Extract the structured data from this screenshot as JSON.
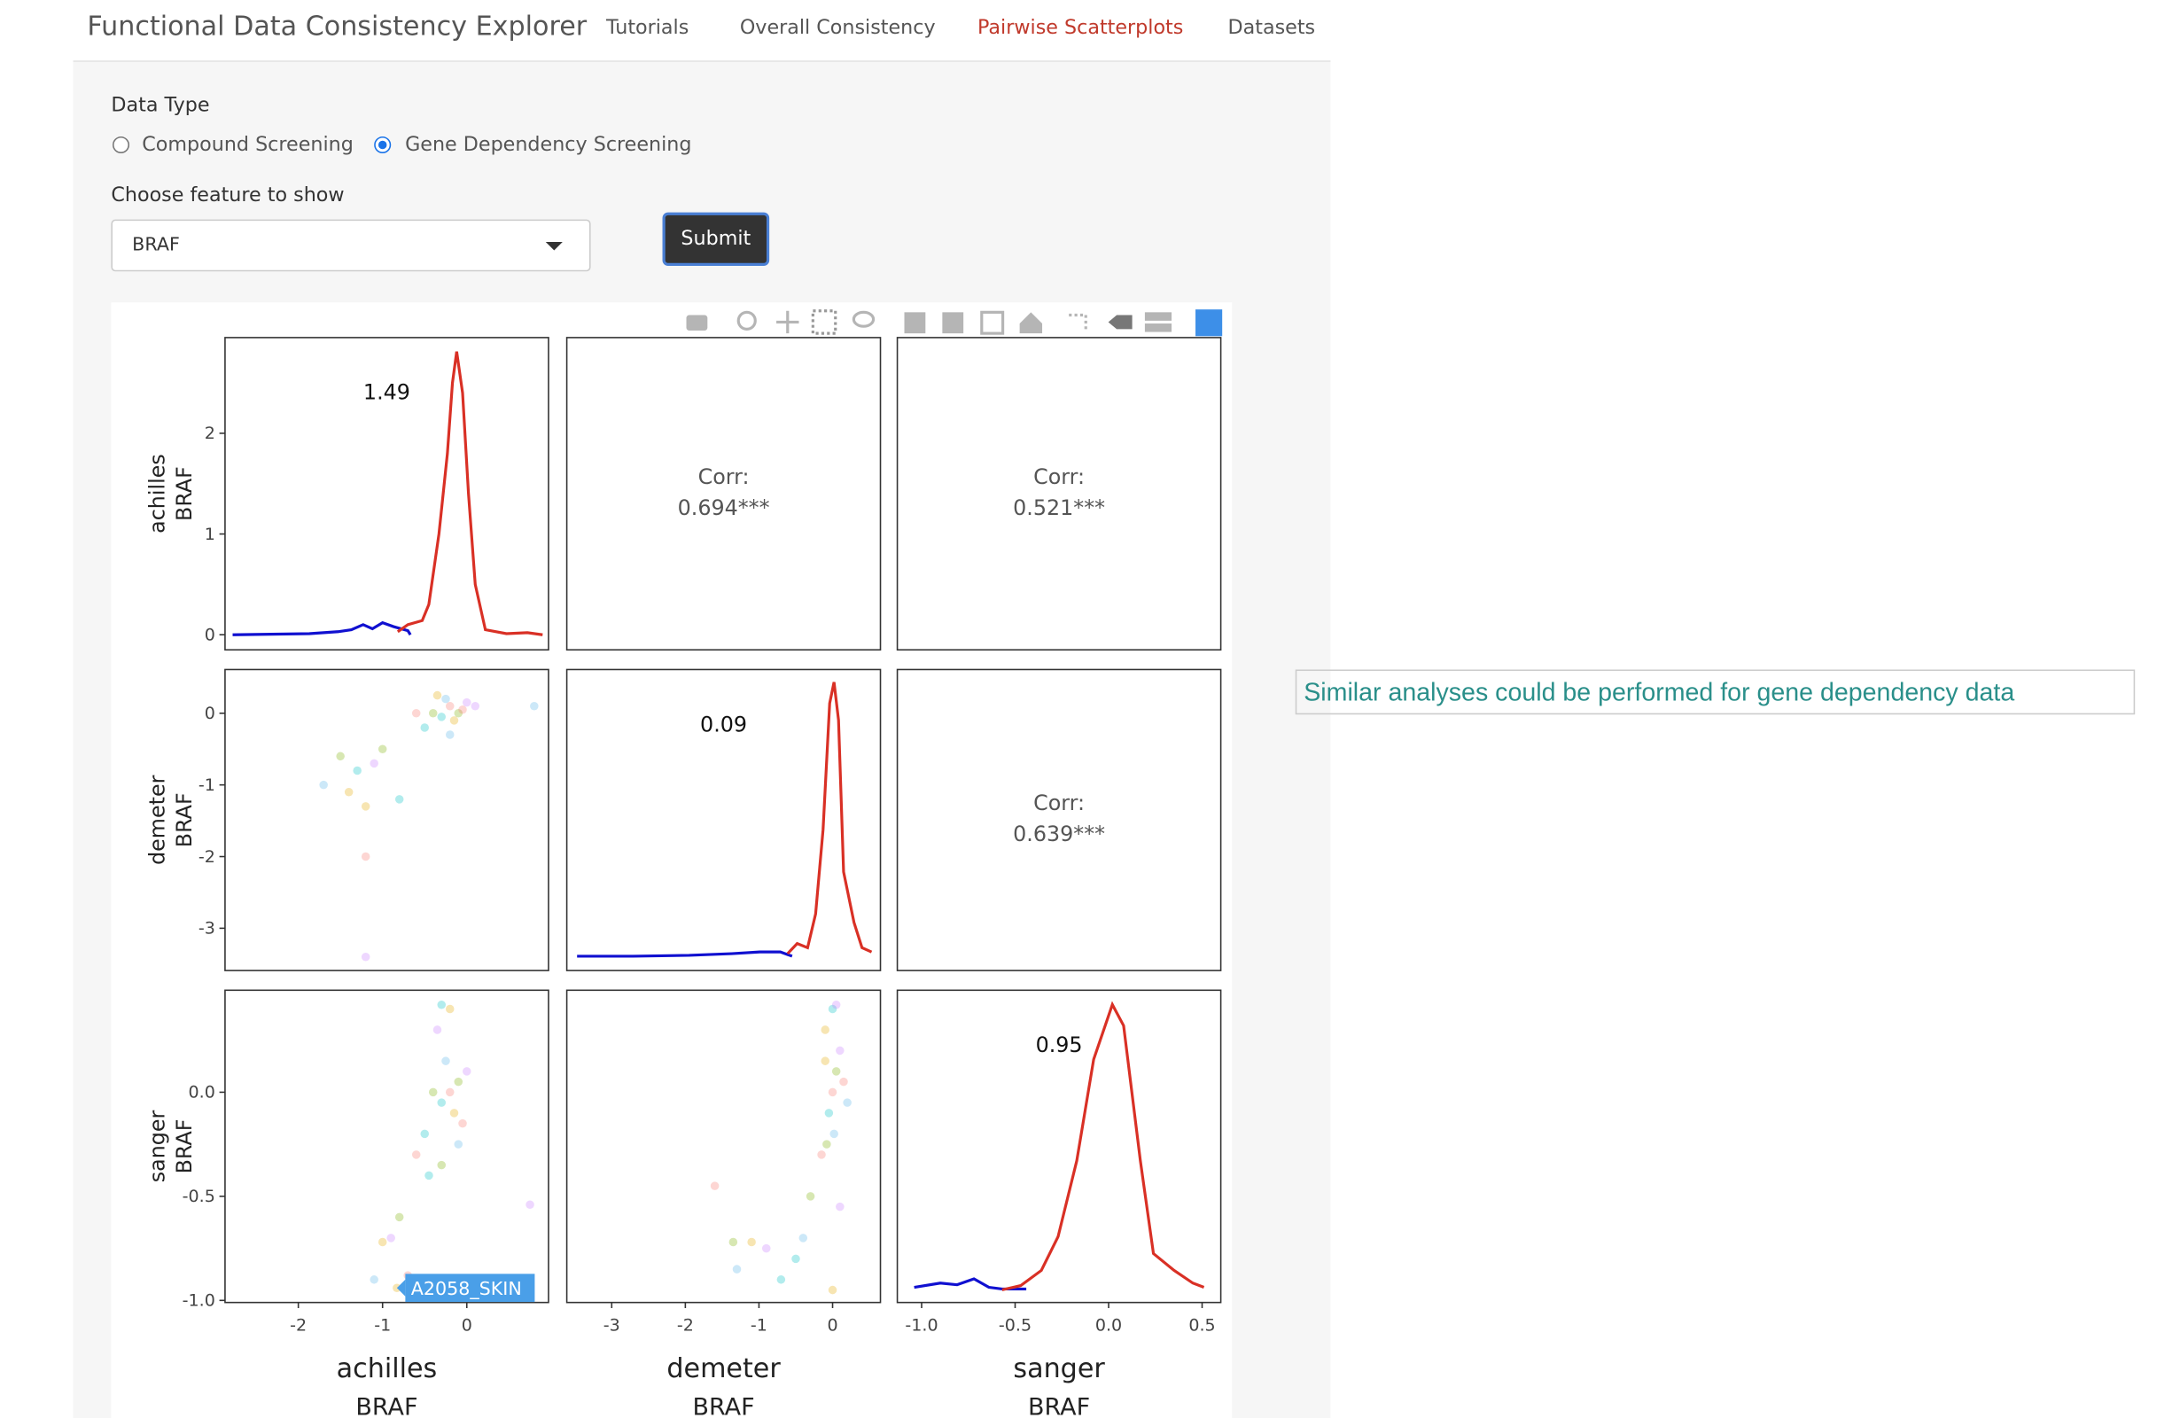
{
  "nav": {
    "brand": "Functional Data Consistency Explorer",
    "links": [
      "Tutorials",
      "Overall Consistency",
      "Pairwise Scatterplots",
      "Datasets"
    ],
    "active": 2
  },
  "form": {
    "data_type_label": "Data Type",
    "options": [
      "Compound Screening",
      "Gene Dependency Screening"
    ],
    "selected": 1,
    "feature_label": "Choose feature to show",
    "feature_value": "BRAF",
    "submit": "Submit"
  },
  "note": "Similar analyses could be performed for gene dependency data",
  "chart_data": {
    "type": "pairs",
    "point_colors": [
      "#f8766d",
      "#7cae00",
      "#00bfc4",
      "#c77cff",
      "#e5a800",
      "#56b4e9"
    ],
    "rows": [
      {
        "title": [
          "achilles",
          "BRAF"
        ],
        "ylim": [
          -0.15,
          2.95
        ],
        "yticks": [
          0,
          1,
          2
        ]
      },
      {
        "title": [
          "demeter",
          "BRAF"
        ],
        "ylim": [
          -3.59,
          0.61
        ],
        "yticks": [
          -3,
          -2,
          -1,
          0
        ]
      },
      {
        "title": [
          "sanger",
          "BRAF"
        ],
        "ylim": [
          -1.01,
          0.49
        ],
        "yticks": [
          {
            "value": -1.0,
            "label": "-1.0"
          },
          -0.5,
          {
            "value": 0.0,
            "label": "0.0"
          }
        ]
      }
    ],
    "columns": [
      {
        "title": [
          "achilles",
          "BRAF"
        ],
        "xlim": [
          -2.87,
          0.97
        ],
        "xticks": [
          -2,
          -1,
          0
        ]
      },
      {
        "title": [
          "demeter",
          "BRAF"
        ],
        "xlim": [
          -3.61,
          0.65
        ],
        "xticks": [
          -3,
          -2,
          -1,
          0
        ]
      },
      {
        "title": [
          "sanger",
          "BRAF"
        ],
        "xlim": [
          -1.13,
          0.6
        ],
        "xticks": [
          {
            "value": -1.0,
            "label": "-1.0"
          },
          -0.5,
          {
            "value": 0.0,
            "label": "0.0"
          },
          0.5
        ]
      }
    ],
    "panels": [
      [
        {
          "type": "density",
          "label": "1.49",
          "series": [
            {
              "color": "#1010d0",
              "x": [
                -2.78,
                -1.87,
                -1.53,
                -1.37,
                -1.23,
                -1.12,
                -1.0,
                -0.87,
                -0.7,
                -0.67
              ],
              "values": [
                0,
                0.01,
                0.03,
                0.05,
                0.1,
                0.06,
                0.12,
                0.08,
                0.04,
                0.0
              ]
            },
            {
              "color": "#d93025",
              "x": [
                -0.82,
                -0.7,
                -0.53,
                -0.45,
                -0.33,
                -0.23,
                -0.17,
                -0.12,
                -0.05,
                0.02,
                0.1,
                0.22,
                0.47,
                0.72,
                0.9
              ],
              "values": [
                0.03,
                0.1,
                0.14,
                0.3,
                1.0,
                1.8,
                2.5,
                2.81,
                2.4,
                1.4,
                0.5,
                0.05,
                0.01,
                0.02,
                0
              ]
            }
          ]
        },
        {
          "type": "corr",
          "lines": [
            "Corr:",
            "0.694***"
          ]
        },
        {
          "type": "corr",
          "lines": [
            "Corr:",
            "0.521***"
          ]
        }
      ],
      [
        {
          "type": "scatter",
          "x": [
            -0.2,
            -0.1,
            -0.3,
            0.0,
            -0.15,
            -0.25,
            -0.05,
            -0.4,
            -0.5,
            0.1,
            -0.35,
            -0.2,
            -0.6,
            -1.5,
            -1.3,
            -1.1,
            -1.4,
            -1.7,
            -1.2,
            -1.0,
            -0.8,
            -1.2,
            -1.2,
            0.8
          ],
          "y": [
            0.1,
            0.0,
            -0.05,
            0.15,
            -0.1,
            0.2,
            0.05,
            0.0,
            -0.2,
            0.1,
            0.25,
            -0.3,
            0.0,
            -0.6,
            -0.8,
            -0.7,
            -1.1,
            -1.0,
            -2.0,
            -0.5,
            -1.2,
            -3.4,
            -1.3,
            0.1
          ]
        },
        {
          "type": "density",
          "label": "0.09",
          "ylim": [
            -0.17,
            3.4
          ],
          "series": [
            {
              "color": "#1010d0",
              "x": [
                -3.47,
                -2.71,
                -1.95,
                -1.37,
                -0.99,
                -0.71,
                -0.55
              ],
              "values": [
                0,
                0,
                0.01,
                0.03,
                0.05,
                0.05,
                0.0
              ]
            },
            {
              "color": "#d93025",
              "x": [
                -0.61,
                -0.48,
                -0.34,
                -0.23,
                -0.13,
                -0.04,
                0.02,
                0.08,
                0.15,
                0.29,
                0.4,
                0.53
              ],
              "values": [
                0.03,
                0.15,
                0.1,
                0.5,
                1.5,
                3.0,
                3.25,
                2.8,
                1.0,
                0.4,
                0.1,
                0.05
              ]
            }
          ]
        },
        {
          "type": "corr",
          "lines": [
            "Corr:",
            "0.639***"
          ]
        }
      ],
      [
        {
          "type": "scatter",
          "x": [
            -0.2,
            -0.1,
            -0.3,
            0.0,
            -0.15,
            -0.25,
            -0.05,
            -0.4,
            -0.5,
            -0.35,
            -0.2,
            -0.1,
            -0.6,
            -0.3,
            -0.45,
            -0.9,
            -1.0,
            -1.1,
            -0.7,
            -0.8,
            -0.3,
            0.75,
            -0.83
          ],
          "y": [
            0.0,
            0.05,
            -0.05,
            0.1,
            -0.1,
            0.15,
            -0.15,
            0.0,
            -0.2,
            0.3,
            0.4,
            -0.25,
            -0.3,
            -0.35,
            -0.4,
            -0.7,
            -0.72,
            -0.9,
            -0.88,
            -0.6,
            0.42,
            -0.54,
            -0.94
          ],
          "annotation": {
            "text": "A2058_SKIN",
            "x": -0.83,
            "y": -0.94
          }
        },
        {
          "type": "scatter",
          "x": [
            0.0,
            0.05,
            -0.05,
            0.1,
            -0.1,
            0.02,
            0.15,
            -0.08,
            0.0,
            0.05,
            -0.1,
            0.2,
            -0.15,
            -0.3,
            -0.5,
            -0.9,
            -1.1,
            -1.3,
            -1.6,
            -1.35,
            -0.7,
            0.1,
            0.0,
            -0.4
          ],
          "y": [
            0.0,
            0.1,
            -0.1,
            0.2,
            0.3,
            -0.2,
            0.05,
            -0.25,
            0.4,
            0.42,
            0.15,
            -0.05,
            -0.3,
            -0.5,
            -0.8,
            -0.75,
            -0.72,
            -0.85,
            -0.45,
            -0.72,
            -0.9,
            -0.55,
            -0.95,
            -0.7
          ]
        },
        {
          "type": "density",
          "label": "0.95",
          "ylim": [
            -0.18,
            3.52
          ],
          "series": [
            {
              "color": "#1010d0",
              "x": [
                -1.04,
                -0.9,
                -0.81,
                -0.72,
                -0.64,
                -0.57,
                -0.44
              ],
              "values": [
                0,
                0.05,
                0.03,
                0.1,
                0.0,
                -0.02,
                -0.02
              ]
            },
            {
              "color": "#d93025",
              "x": [
                -0.57,
                -0.47,
                -0.36,
                -0.27,
                -0.17,
                -0.08,
                0.02,
                0.08,
                0.17,
                0.24,
                0.35,
                0.45,
                0.51
              ],
              "values": [
                -0.03,
                0.02,
                0.2,
                0.6,
                1.5,
                2.7,
                3.35,
                3.1,
                1.5,
                0.4,
                0.2,
                0.05,
                0.0
              ]
            }
          ]
        }
      ]
    ]
  }
}
